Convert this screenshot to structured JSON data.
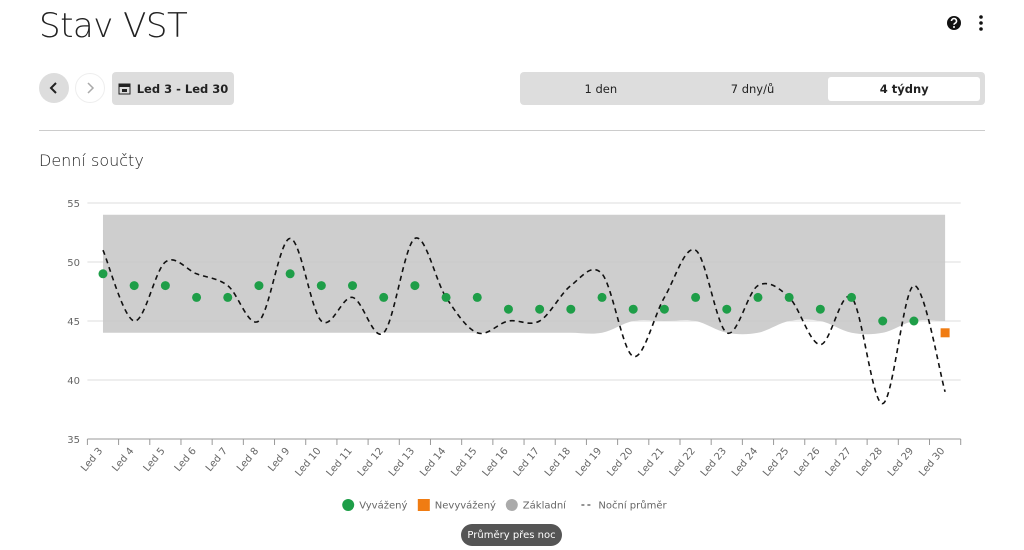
{
  "header": {
    "title": "Stav VST"
  },
  "toolbar": {
    "date_range": "Led 3 - Led 30",
    "periods": [
      "1 den",
      "7 dny/ů",
      "4 týdny"
    ],
    "selected_period": 2
  },
  "section_title": "Denní součty",
  "chart_data": {
    "type": "line",
    "categories": [
      "Led 3",
      "Led 4",
      "Led 5",
      "Led 6",
      "Led 7",
      "Led 8",
      "Led 9",
      "Led 10",
      "Led 11",
      "Led 12",
      "Led 13",
      "Led 14",
      "Led 15",
      "Led 16",
      "Led 17",
      "Led 18",
      "Led 19",
      "Led 20",
      "Led 21",
      "Led 22",
      "Led 23",
      "Led 24",
      "Led 25",
      "Led 26",
      "Led 27",
      "Led 28",
      "Led 29",
      "Led 30"
    ],
    "ylim": [
      35,
      55
    ],
    "yticks": [
      35,
      40,
      45,
      50,
      55
    ],
    "grid": true,
    "legend": "bottom",
    "series": [
      {
        "name": "Vyvážený",
        "color": "#1e9e48",
        "style": "dot",
        "values": [
          49,
          48,
          48,
          47,
          47,
          48,
          49,
          48,
          48,
          47,
          48,
          47,
          47,
          46,
          46,
          46,
          47,
          46,
          46,
          47,
          46,
          47,
          47,
          46,
          47,
          45,
          45,
          null
        ]
      },
      {
        "name": "Nevyvážený",
        "color": "#f07c12",
        "style": "square",
        "values": [
          null,
          null,
          null,
          null,
          null,
          null,
          null,
          null,
          null,
          null,
          null,
          null,
          null,
          null,
          null,
          null,
          null,
          null,
          null,
          null,
          null,
          null,
          null,
          null,
          null,
          null,
          null,
          44
        ]
      },
      {
        "name": "Základní",
        "color": "#c9c9c9",
        "style": "band",
        "values": [
          54,
          54,
          54,
          54,
          54,
          54,
          54,
          54,
          54,
          54,
          54,
          54,
          54,
          54,
          54,
          54,
          54,
          54,
          54,
          54,
          54,
          54,
          54,
          54,
          54,
          54,
          54,
          54
        ],
        "lower": [
          44,
          44,
          44,
          44,
          44,
          44,
          44,
          44,
          44,
          44,
          44,
          44,
          44,
          44,
          44,
          44,
          44,
          45,
          45,
          45,
          44,
          44,
          45,
          45,
          44,
          44,
          45,
          45
        ]
      },
      {
        "name": "Noční průměr",
        "color": "#111111",
        "style": "dashed",
        "values": [
          51,
          45,
          50,
          49,
          48,
          45,
          52,
          45,
          47,
          44,
          52,
          47,
          44,
          45,
          45,
          48,
          49,
          42,
          47,
          51,
          44,
          48,
          47,
          43,
          47,
          38,
          48,
          39
        ]
      }
    ]
  },
  "footer_button": "Průměry přes noc"
}
